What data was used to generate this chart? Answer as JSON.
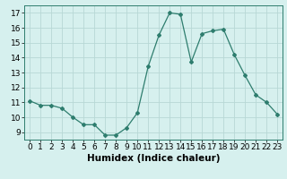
{
  "x": [
    0,
    1,
    2,
    3,
    4,
    5,
    6,
    7,
    8,
    9,
    10,
    11,
    12,
    13,
    14,
    15,
    16,
    17,
    18,
    19,
    20,
    21,
    22,
    23
  ],
  "y": [
    11.1,
    10.8,
    10.8,
    10.6,
    10.0,
    9.5,
    9.5,
    8.8,
    8.8,
    9.3,
    10.3,
    13.4,
    15.5,
    17.0,
    16.9,
    13.7,
    15.6,
    15.8,
    15.9,
    14.2,
    12.8,
    11.5,
    11.0,
    10.2
  ],
  "xlim": [
    -0.5,
    23.5
  ],
  "ylim": [
    8.5,
    17.5
  ],
  "yticks": [
    9,
    10,
    11,
    12,
    13,
    14,
    15,
    16,
    17
  ],
  "xticks": [
    0,
    1,
    2,
    3,
    4,
    5,
    6,
    7,
    8,
    9,
    10,
    11,
    12,
    13,
    14,
    15,
    16,
    17,
    18,
    19,
    20,
    21,
    22,
    23
  ],
  "xlabel": "Humidex (Indice chaleur)",
  "line_color": "#2e7d6e",
  "marker": "D",
  "marker_size": 2.0,
  "bg_color": "#d6f0ee",
  "grid_color": "#b8d8d5",
  "tick_fontsize": 6.5,
  "xlabel_fontsize": 7.5
}
